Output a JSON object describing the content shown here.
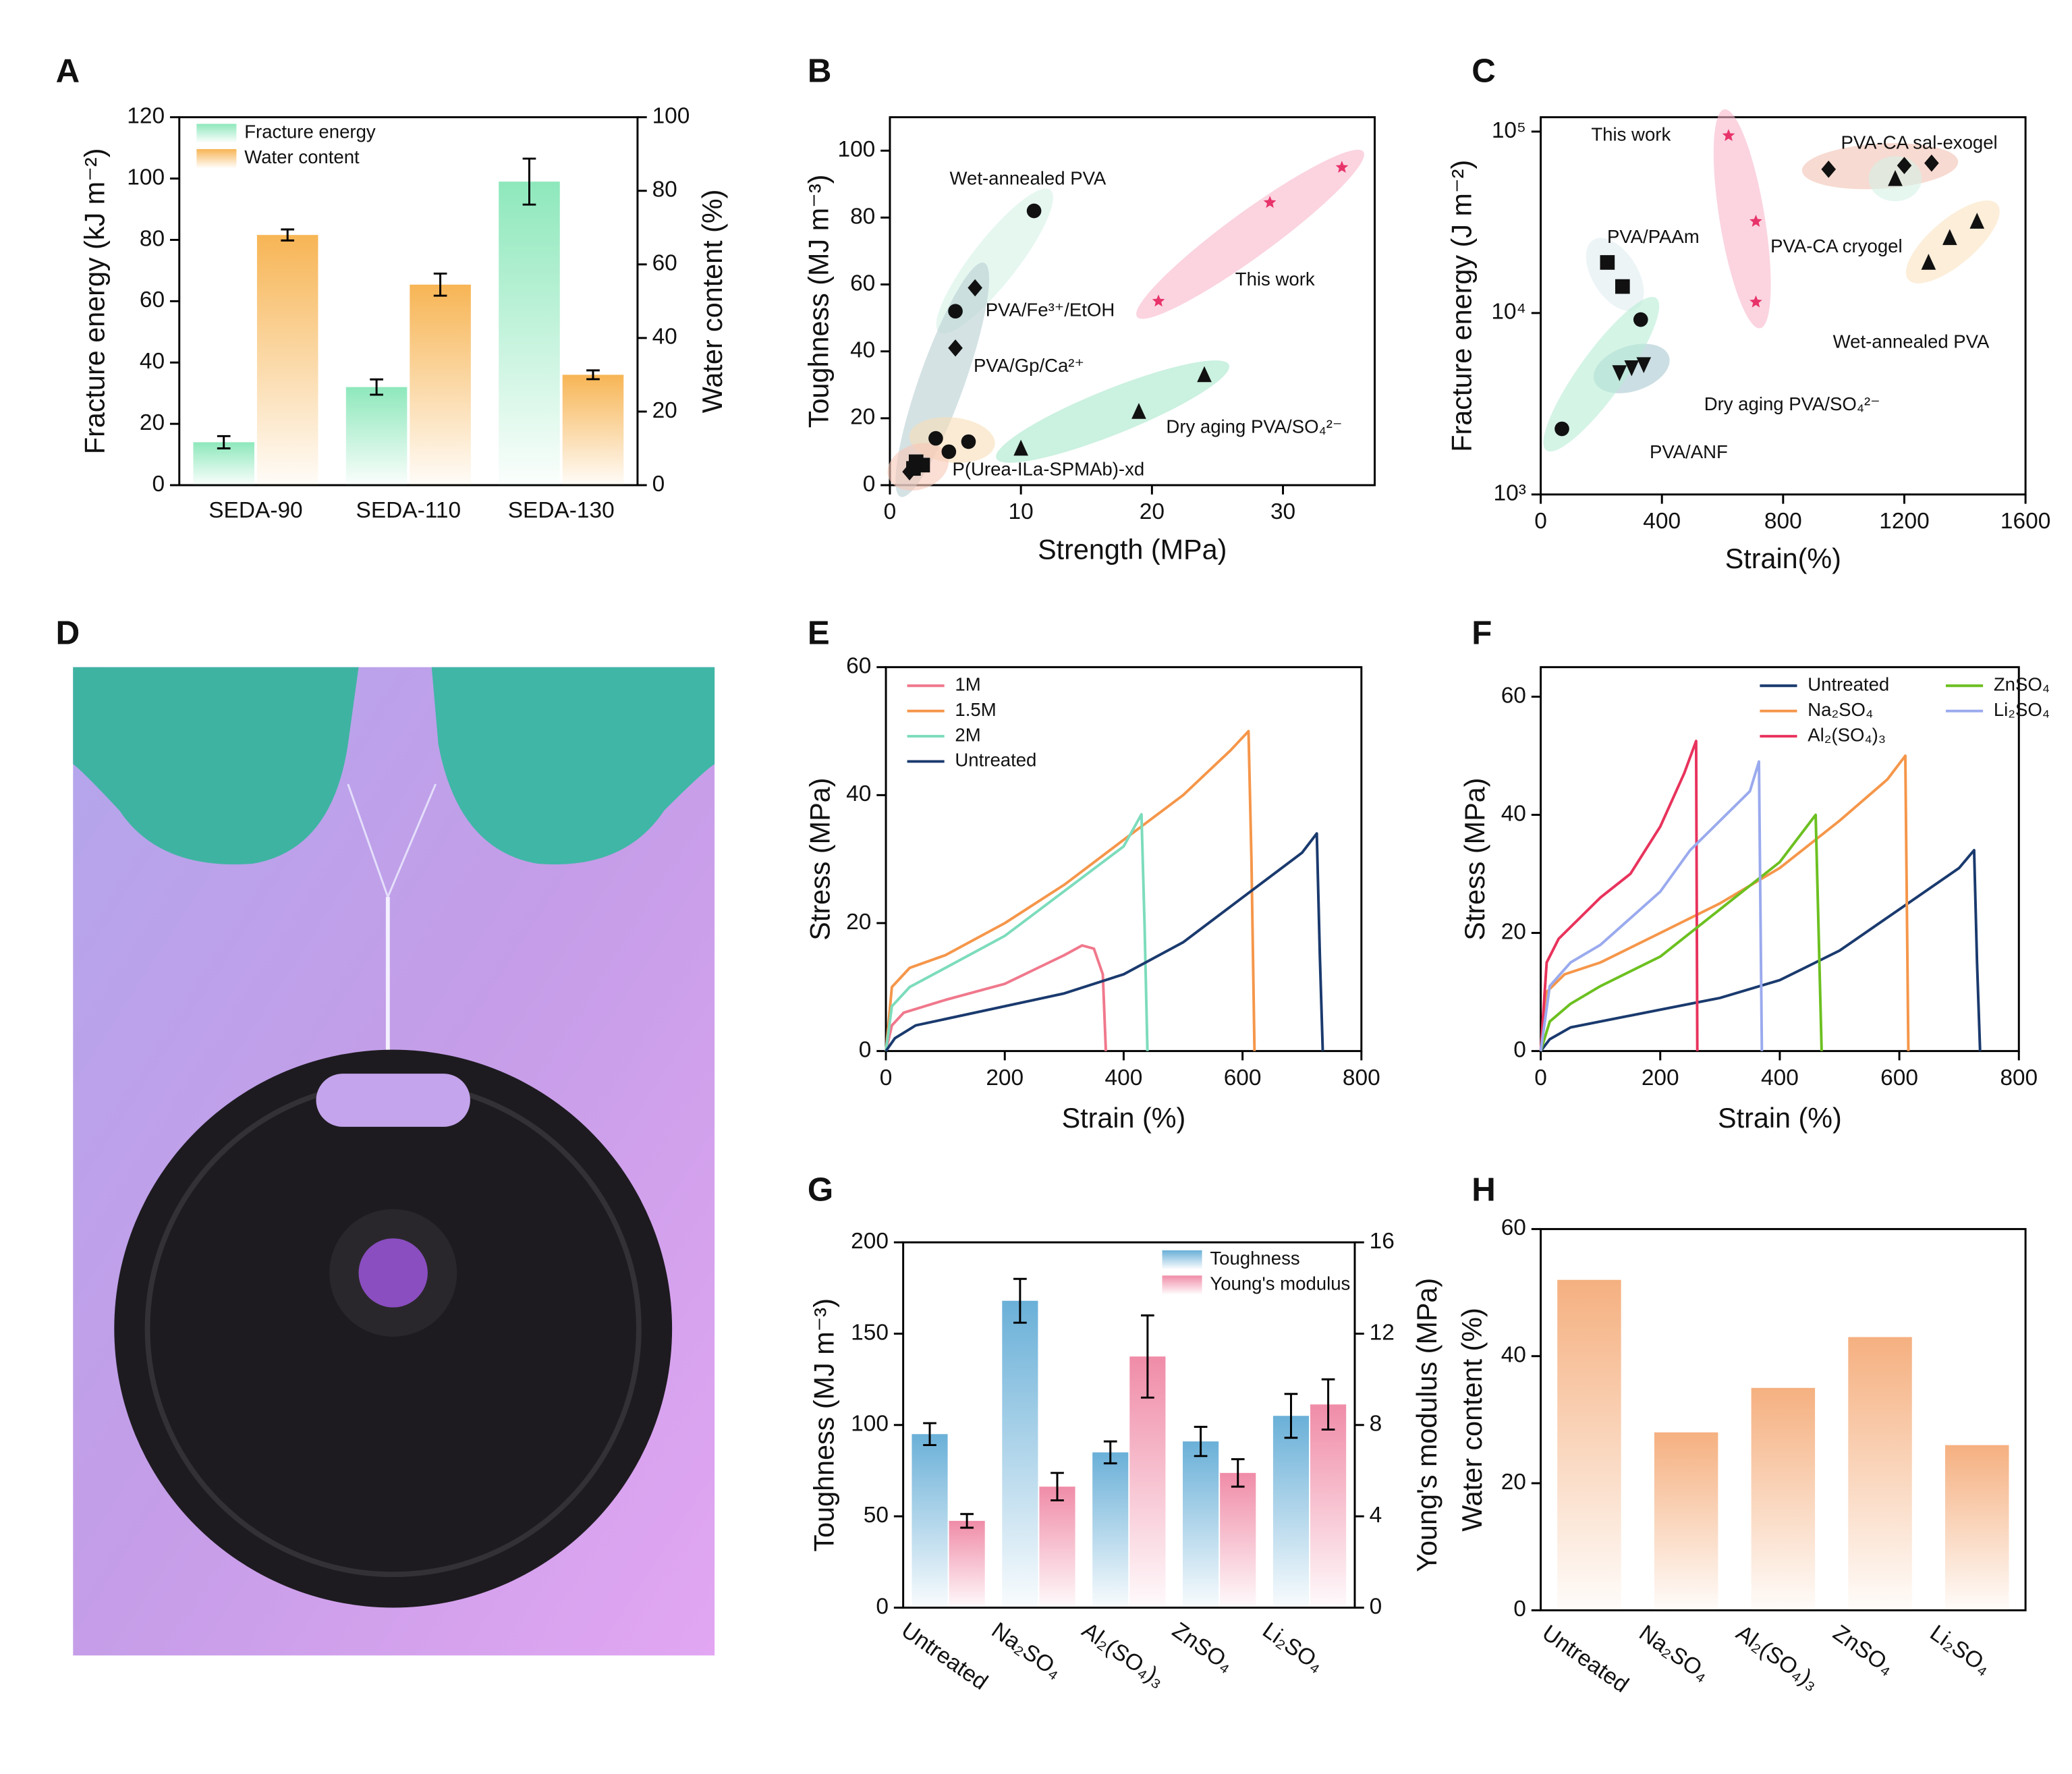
{
  "chart_data": [
    {
      "type": "bar",
      "panel_label": "A",
      "ylabel": "Fracture energy (kJ m⁻²)",
      "y2label": "Water content (%)",
      "categories": [
        "SEDA-90",
        "SEDA-110",
        "SEDA-130"
      ],
      "series": [
        {
          "name": "Fracture energy",
          "color": "#8ee8bc",
          "values": [
            14,
            32,
            99
          ],
          "errors": [
            2,
            2.5,
            7.5
          ]
        },
        {
          "name": "Water content",
          "color": "#f7b555",
          "axis": "y2",
          "values": [
            68,
            54.5,
            30
          ],
          "errors": [
            1.5,
            3,
            1.2
          ]
        }
      ],
      "ylim": [
        0,
        120
      ],
      "yticks": [
        0,
        20,
        40,
        60,
        80,
        100,
        120
      ],
      "y2lim": [
        0,
        100
      ],
      "y2ticks": [
        0,
        20,
        40,
        60,
        80,
        100
      ],
      "legend": "upper left",
      "grid": false
    },
    {
      "type": "scatter",
      "panel_label": "B",
      "xlabel": "Strength (MPa)",
      "ylabel": "Toughness (MJ m⁻³)",
      "xlim": [
        0,
        37
      ],
      "xticks": [
        0,
        10,
        20,
        30
      ],
      "ylim": [
        0,
        110
      ],
      "yticks": [
        0,
        20,
        40,
        60,
        80,
        100
      ],
      "grid": false,
      "series": [
        {
          "name": "Wet-annealed PVA",
          "marker": "circle",
          "color": "#111111",
          "ellipse_color": "#d6f2e6",
          "label_color": "#9fdcc2",
          "x": [
            5,
            11
          ],
          "values": [
            52,
            82
          ]
        },
        {
          "name": "This work",
          "marker": "star",
          "color": "#e8336a",
          "ellipse_color": "#f8b8cc",
          "label_color": "#e8336a",
          "x": [
            20.5,
            29,
            34.5
          ],
          "values": [
            55,
            84.5,
            95
          ]
        },
        {
          "name": "PVA/Fe³⁺/EtOH",
          "marker": "diamond",
          "color": "#111111",
          "ellipse_color": "#b8cfd2",
          "label_color": "#3a6fb0",
          "x": [
            6.5,
            5,
            1.5
          ],
          "values": [
            59,
            41,
            4
          ]
        },
        {
          "name": "PVA/Gp/Ca²⁺",
          "marker": "circle",
          "color": "#111111",
          "ellipse_color": "#f8ddb8",
          "label_color": "#f2a93b",
          "x": [
            3.5,
            4.5,
            6
          ],
          "values": [
            14,
            10,
            13
          ]
        },
        {
          "name": "P(Urea-ILa-SPMAb)-xd",
          "marker": "square",
          "color": "#111111",
          "ellipse_color": "#f8c8b8",
          "label_color": "#ee6a3c",
          "x": [
            2,
            2.5,
            1.8
          ],
          "values": [
            7,
            6,
            5
          ]
        },
        {
          "name": "Dry aging PVA/SO₄²⁻",
          "marker": "triangle",
          "color": "#111111",
          "ellipse_color": "#a8e8cc",
          "label_color": "#22a878",
          "x": [
            10,
            19,
            24
          ],
          "values": [
            11,
            22,
            33
          ]
        }
      ]
    },
    {
      "type": "scatter",
      "panel_label": "C",
      "xlabel": "Strain(%)",
      "ylabel": "Fracture energy (J m⁻²)",
      "xlim": [
        0,
        1600
      ],
      "xticks": [
        0,
        400,
        800,
        1200,
        1600
      ],
      "ylog": true,
      "ylim": [
        1000,
        120000
      ],
      "yticks": [
        {
          "value": 1000,
          "label": "10³"
        },
        {
          "value": 10000,
          "label": "10⁴"
        },
        {
          "value": 100000,
          "label": "10⁵"
        }
      ],
      "grid": false,
      "series": [
        {
          "name": "This work",
          "marker": "star",
          "color": "#e8336a",
          "ellipse_color": "#f8b8cc",
          "label_color": "#e8336a",
          "x": [
            620,
            710,
            710
          ],
          "values": [
            95000,
            32000,
            11500
          ]
        },
        {
          "name": "PVA-CA sal-exogel",
          "marker": "diamond",
          "color": "#111111",
          "ellipse_color": "#f2c2b2",
          "label_color": "#ee6a3c",
          "x": [
            950,
            1200,
            1290
          ],
          "values": [
            62000,
            65000,
            67000
          ]
        },
        {
          "name": "PVA-CA cryogel",
          "marker": "triangle",
          "color": "#111111",
          "ellipse_color": "#d6f2e6",
          "label_color": "#a8e4cc",
          "x": [
            1170
          ],
          "values": [
            55000
          ]
        },
        {
          "name": "PVA/PAAm",
          "marker": "square",
          "color": "#111111",
          "ellipse_color": "#e0ecf0",
          "label_color": "#a8d8e8",
          "x": [
            220,
            270
          ],
          "values": [
            19000,
            14000
          ]
        },
        {
          "name": "Wet-annealed PVA",
          "marker": "triangle",
          "color": "#111111",
          "ellipse_color": "#fae2c0",
          "label_color": "#f2b04a",
          "x": [
            1280,
            1350,
            1440
          ],
          "values": [
            19000,
            26000,
            32000
          ]
        },
        {
          "name": "Dry aging PVA/SO₄²⁻",
          "marker": "triangle-down",
          "color": "#111111",
          "ellipse_color": "#a8c8d0",
          "label_color": "#3a6fb0",
          "x": [
            260,
            300,
            340
          ],
          "values": [
            4700,
            5000,
            5200
          ]
        },
        {
          "name": "PVA/ANF",
          "marker": "circle",
          "color": "#111111",
          "ellipse_color": "#b8ecd6",
          "label_color": "#7ad8b8",
          "x": [
            70,
            330
          ],
          "values": [
            2300,
            9200
          ]
        }
      ]
    },
    {
      "type": "image",
      "panel_label": "D"
    },
    {
      "type": "line",
      "panel_label": "E",
      "xlabel": "Strain (%)",
      "ylabel": "Stress (MPa)",
      "xlim": [
        0,
        800
      ],
      "xticks": [
        0,
        200,
        400,
        600,
        800
      ],
      "ylim": [
        0,
        60
      ],
      "yticks": [
        0,
        20,
        40,
        60
      ],
      "legend": "upper left",
      "grid": false,
      "series": [
        {
          "name": "1M",
          "color": "#f0788c",
          "x": [
            0,
            10,
            30,
            100,
            200,
            300,
            330,
            350,
            365,
            370
          ],
          "values": [
            0,
            4,
            6,
            8,
            10.5,
            15,
            16.5,
            16,
            12,
            0
          ]
        },
        {
          "name": "1.5M",
          "color": "#f5964a",
          "x": [
            0,
            10,
            40,
            100,
            200,
            300,
            400,
            500,
            580,
            610,
            615,
            620
          ],
          "values": [
            0,
            10,
            13,
            15,
            20,
            26,
            33,
            40,
            47,
            50,
            30,
            0
          ]
        },
        {
          "name": "2M",
          "color": "#7cdcbc",
          "x": [
            0,
            10,
            40,
            100,
            200,
            300,
            400,
            430,
            435,
            440
          ],
          "values": [
            0,
            7,
            10,
            13,
            18,
            25,
            32,
            37,
            20,
            0
          ]
        },
        {
          "name": "Untreated",
          "color": "#1a3a6e",
          "x": [
            0,
            15,
            50,
            150,
            300,
            400,
            500,
            600,
            700,
            725,
            730,
            735
          ],
          "values": [
            0,
            2,
            4,
            6,
            9,
            12,
            17,
            24,
            31,
            34,
            15,
            0
          ]
        }
      ]
    },
    {
      "type": "line",
      "panel_label": "F",
      "xlabel": "Strain (%)",
      "ylabel": "Stress (MPa)",
      "xlim": [
        0,
        800
      ],
      "xticks": [
        0,
        200,
        400,
        600,
        800
      ],
      "ylim": [
        0,
        65
      ],
      "yticks": [
        0,
        20,
        40,
        60
      ],
      "legend": "upper right",
      "grid": false,
      "series": [
        {
          "name": "Untreated",
          "color": "#1a3a6e",
          "x": [
            0,
            15,
            50,
            150,
            300,
            400,
            500,
            600,
            700,
            725,
            730,
            735
          ],
          "values": [
            0,
            2,
            4,
            6,
            9,
            12,
            17,
            24,
            31,
            34,
            15,
            0
          ]
        },
        {
          "name": "Na₂SO₄",
          "color": "#f5964a",
          "x": [
            0,
            10,
            40,
            100,
            200,
            300,
            400,
            500,
            580,
            610,
            615
          ],
          "values": [
            0,
            10,
            13,
            15,
            20,
            25,
            31,
            39,
            46,
            50,
            0
          ]
        },
        {
          "name": "Al₂(SO₄)₃",
          "color": "#e8335c",
          "x": [
            0,
            10,
            30,
            100,
            150,
            200,
            240,
            260,
            262
          ],
          "values": [
            0,
            15,
            19,
            26,
            30,
            38,
            47,
            52.5,
            0
          ]
        },
        {
          "name": "ZnSO₄",
          "color": "#6cc020",
          "x": [
            0,
            15,
            50,
            100,
            200,
            300,
            400,
            460,
            470
          ],
          "values": [
            0,
            5,
            8,
            11,
            16,
            24,
            32,
            40,
            0
          ]
        },
        {
          "name": "Li₂SO₄",
          "color": "#9aaaee",
          "x": [
            0,
            15,
            50,
            100,
            200,
            250,
            300,
            350,
            365,
            370
          ],
          "values": [
            0,
            11,
            15,
            18,
            27,
            34,
            39,
            44,
            49,
            0
          ]
        }
      ]
    },
    {
      "type": "bar",
      "panel_label": "G",
      "ylabel": "Toughness (MJ m⁻³)",
      "y2label": "Young's modulus (MPa)",
      "categories": [
        "Untreated",
        "Na₂SO₄",
        "Al₂(SO₄)₃",
        "ZnSO₄",
        "Li₂SO₄"
      ],
      "series": [
        {
          "name": "Toughness",
          "color": "#6ab0d8",
          "values": [
            95,
            168,
            85,
            91,
            105
          ],
          "errors": [
            6,
            12,
            6,
            8,
            12
          ]
        },
        {
          "name": "Young's modulus",
          "color": "#f08ca8",
          "axis": "y2",
          "values": [
            3.8,
            5.3,
            11,
            5.9,
            8.9
          ],
          "errors": [
            0.3,
            0.6,
            1.8,
            0.6,
            1.1
          ]
        }
      ],
      "ylim": [
        0,
        200
      ],
      "yticks": [
        0,
        50,
        100,
        150,
        200
      ],
      "y2lim": [
        0,
        16
      ],
      "y2ticks": [
        0,
        4,
        8,
        12,
        16
      ],
      "legend": "upper right",
      "grid": false
    },
    {
      "type": "bar",
      "panel_label": "H",
      "ylabel": "Water content (%)",
      "categories": [
        "Untreated",
        "Na₂SO₄",
        "Al₂(SO₄)₃",
        "ZnSO₄",
        "Li₂SO₄"
      ],
      "values": [
        52,
        28,
        35,
        43,
        26
      ],
      "color": "#f5b080",
      "ylim": [
        0,
        60
      ],
      "yticks": [
        0,
        20,
        40,
        60
      ],
      "grid": false
    }
  ]
}
